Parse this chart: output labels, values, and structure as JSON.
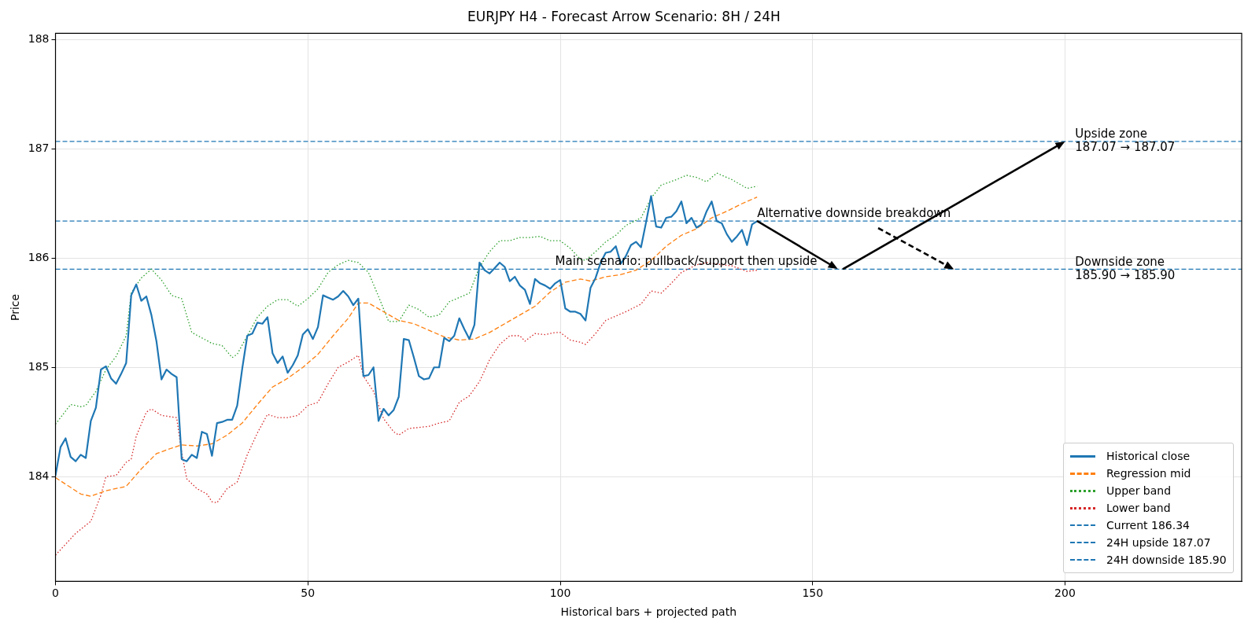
{
  "chart_data": {
    "type": "line",
    "title": "EURJPY H4 - Forecast Arrow Scenario: 8H / 24H",
    "xlabel": "Historical bars + projected path",
    "ylabel": "Price",
    "xlim": [
      0,
      235
    ],
    "ylim": [
      183.04,
      188.06
    ],
    "xticks": [
      0,
      50,
      100,
      150,
      200
    ],
    "yticks": [
      184,
      185,
      186,
      187,
      188
    ],
    "grid": true,
    "legend": "bottom right",
    "marker": "none",
    "series": [
      {
        "name": "Historical close",
        "color": "#1f77b4",
        "line_style": "solid",
        "x": [
          0,
          1,
          2,
          3,
          4,
          5,
          6,
          7,
          8,
          9,
          10,
          11,
          12,
          13,
          14,
          15,
          16,
          17,
          18,
          19,
          20,
          21,
          22,
          23,
          24,
          25,
          26,
          27,
          28,
          29,
          30,
          31,
          32,
          33,
          34,
          35,
          36,
          37,
          38,
          39,
          40,
          41,
          42,
          43,
          44,
          45,
          46,
          47,
          48,
          49,
          50,
          51,
          52,
          53,
          54,
          55,
          56,
          57,
          58,
          59,
          60,
          61,
          62,
          63,
          64,
          65,
          66,
          67,
          68,
          69,
          70,
          71,
          72,
          73,
          74,
          75,
          76,
          77,
          78,
          79,
          80,
          81,
          82,
          83,
          84,
          85,
          86,
          87,
          88,
          89,
          90,
          91,
          92,
          93,
          94,
          95,
          96,
          97,
          98,
          99,
          100,
          101,
          102,
          103,
          104,
          105,
          106,
          107,
          108,
          109,
          110,
          111,
          112,
          113,
          114,
          115,
          116,
          117,
          118,
          119,
          120,
          121,
          122,
          123,
          124,
          125,
          126,
          127,
          128,
          129,
          130,
          131,
          132,
          133,
          134,
          135,
          136,
          137,
          138,
          139
        ],
        "values": [
          184.01,
          184.27,
          184.35,
          184.18,
          184.14,
          184.2,
          184.17,
          184.51,
          184.63,
          184.98,
          185.01,
          184.9,
          184.85,
          184.94,
          185.04,
          185.66,
          185.76,
          185.61,
          185.65,
          185.48,
          185.24,
          184.89,
          184.98,
          184.94,
          184.91,
          184.16,
          184.14,
          184.2,
          184.17,
          184.41,
          184.39,
          184.19,
          184.49,
          184.5,
          184.52,
          184.52,
          184.65,
          184.99,
          185.29,
          185.31,
          185.41,
          185.4,
          185.46,
          185.13,
          185.04,
          185.1,
          184.95,
          185.02,
          185.11,
          185.3,
          185.35,
          185.26,
          185.37,
          185.66,
          185.64,
          185.62,
          185.65,
          185.7,
          185.65,
          185.57,
          185.63,
          184.92,
          184.93,
          185.0,
          184.51,
          184.62,
          184.56,
          184.61,
          184.73,
          185.26,
          185.25,
          185.09,
          184.92,
          184.89,
          184.9,
          185.0,
          185.0,
          185.27,
          185.24,
          185.29,
          185.45,
          185.35,
          185.26,
          185.39,
          185.96,
          185.89,
          185.86,
          185.91,
          185.96,
          185.92,
          185.79,
          185.83,
          185.75,
          185.71,
          185.58,
          185.81,
          185.77,
          185.75,
          185.72,
          185.77,
          185.8,
          185.54,
          185.51,
          185.51,
          185.49,
          185.43,
          185.73,
          185.82,
          185.96,
          186.05,
          186.06,
          186.11,
          185.95,
          186.02,
          186.12,
          186.15,
          186.1,
          186.33,
          186.57,
          186.29,
          186.28,
          186.37,
          186.38,
          186.43,
          186.52,
          186.32,
          186.37,
          186.28,
          186.31,
          186.43,
          186.52,
          186.34,
          186.32,
          186.22,
          186.15,
          186.2,
          186.26,
          186.12,
          186.31,
          186.34
        ]
      },
      {
        "name": "Regression mid",
        "color": "#ff7f0e",
        "line_style": "dashed",
        "x": [
          0,
          5,
          7,
          10,
          14,
          17,
          20,
          23,
          25,
          28,
          31,
          34,
          37,
          40,
          43,
          46,
          49,
          52,
          55,
          58,
          60,
          62,
          65,
          68,
          71,
          74,
          77,
          80,
          83,
          86,
          89,
          92,
          95,
          98,
          101,
          104,
          106,
          109,
          112,
          115,
          118,
          121,
          124,
          127,
          130,
          133,
          136,
          139
        ],
        "values": [
          183.99,
          183.84,
          183.82,
          183.87,
          183.91,
          184.07,
          184.21,
          184.26,
          184.29,
          184.28,
          184.3,
          184.38,
          184.49,
          184.66,
          184.82,
          184.9,
          185.0,
          185.12,
          185.29,
          185.45,
          185.59,
          185.59,
          185.51,
          185.43,
          185.4,
          185.34,
          185.28,
          185.25,
          185.26,
          185.32,
          185.4,
          185.48,
          185.56,
          185.69,
          185.78,
          185.81,
          185.79,
          185.83,
          185.85,
          185.89,
          185.98,
          186.11,
          186.21,
          186.27,
          186.37,
          186.43,
          186.5,
          186.56
        ]
      },
      {
        "name": "Upper band",
        "color": "#2ca02c",
        "line_style": "dotted",
        "x": [
          0,
          2,
          3,
          5,
          6,
          8,
          10,
          12,
          14,
          15,
          17,
          19,
          21,
          23,
          25,
          27,
          29,
          31,
          33,
          35,
          36,
          38,
          40,
          42,
          44,
          46,
          48,
          50,
          52,
          54,
          56,
          58,
          60,
          62,
          64,
          66,
          68,
          70,
          72,
          74,
          76,
          78,
          80,
          82,
          84,
          86,
          88,
          90,
          92,
          94,
          96,
          98,
          100,
          102,
          104,
          105,
          107,
          109,
          111,
          113,
          116,
          118,
          120,
          123,
          125,
          127,
          129,
          131,
          134,
          137,
          139
        ],
        "values": [
          184.48,
          184.6,
          184.66,
          184.64,
          184.65,
          184.78,
          184.98,
          185.1,
          185.29,
          185.68,
          185.82,
          185.9,
          185.8,
          185.66,
          185.63,
          185.32,
          185.27,
          185.22,
          185.2,
          185.09,
          185.12,
          185.29,
          185.46,
          185.56,
          185.62,
          185.62,
          185.56,
          185.63,
          185.72,
          185.87,
          185.94,
          185.98,
          185.96,
          185.87,
          185.65,
          185.42,
          185.42,
          185.57,
          185.53,
          185.46,
          185.48,
          185.6,
          185.64,
          185.68,
          185.92,
          186.06,
          186.16,
          186.16,
          186.19,
          186.19,
          186.2,
          186.16,
          186.16,
          186.09,
          185.99,
          185.98,
          186.06,
          186.15,
          186.21,
          186.3,
          186.37,
          186.55,
          186.67,
          186.72,
          186.76,
          186.74,
          186.7,
          186.78,
          186.72,
          186.64,
          186.66
        ]
      },
      {
        "name": "Lower band",
        "color": "#d62728",
        "line_style": "dotted",
        "x": [
          0,
          2,
          4,
          7,
          9,
          10,
          12,
          14,
          15,
          16,
          18,
          19,
          21,
          24,
          25,
          26,
          28,
          30,
          31,
          32,
          34,
          36,
          38,
          40,
          42,
          44,
          46,
          48,
          50,
          52,
          54,
          56,
          58,
          60,
          61,
          63,
          65,
          67,
          68,
          70,
          72,
          74,
          76,
          78,
          80,
          82,
          84,
          86,
          88,
          90,
          92,
          93,
          95,
          97,
          99,
          100,
          102,
          104,
          105,
          107,
          109,
          111,
          113,
          116,
          118,
          120,
          122,
          124,
          127,
          129,
          132,
          134,
          137,
          139
        ],
        "values": [
          183.28,
          183.38,
          183.48,
          183.59,
          183.83,
          184.0,
          184.01,
          184.13,
          184.16,
          184.37,
          184.59,
          184.62,
          184.56,
          184.54,
          184.22,
          183.98,
          183.89,
          183.84,
          183.77,
          183.76,
          183.89,
          183.95,
          184.2,
          184.4,
          184.57,
          184.54,
          184.54,
          184.56,
          184.65,
          184.68,
          184.85,
          185.0,
          185.05,
          185.11,
          184.92,
          184.78,
          184.53,
          184.41,
          184.38,
          184.44,
          184.45,
          184.46,
          184.49,
          184.51,
          184.68,
          184.74,
          184.87,
          185.07,
          185.21,
          185.29,
          185.29,
          185.24,
          185.31,
          185.3,
          185.32,
          185.32,
          185.25,
          185.23,
          185.21,
          185.31,
          185.43,
          185.47,
          185.51,
          185.58,
          185.7,
          185.68,
          185.77,
          185.87,
          185.94,
          185.96,
          185.94,
          185.93,
          185.88,
          185.89
        ]
      }
    ],
    "ref_lines": [
      {
        "axis": "y",
        "value": 186.34,
        "label": "Current 186.34",
        "color": "#1f77b4",
        "line_style": "dashed"
      },
      {
        "axis": "y",
        "value": 187.07,
        "label": "24H upside 187.07",
        "color": "#1f77b4",
        "line_style": "dashed"
      },
      {
        "axis": "y",
        "value": 185.9,
        "label": "24H downside 185.90",
        "color": "#1f77b4",
        "line_style": "dashed"
      }
    ],
    "annotations": [
      {
        "text": "Main scenario: pullback/support then upside",
        "x": 99,
        "y": 185.9
      },
      {
        "text": "Alternative downside breakdown",
        "x": 139,
        "y": 186.34
      },
      {
        "text": "Upside zone\n187.07 → 187.07",
        "x": 202,
        "y": 187.07
      },
      {
        "text": "Downside zone\n185.90 → 185.90",
        "x": 202,
        "y": 185.9
      }
    ]
  }
}
